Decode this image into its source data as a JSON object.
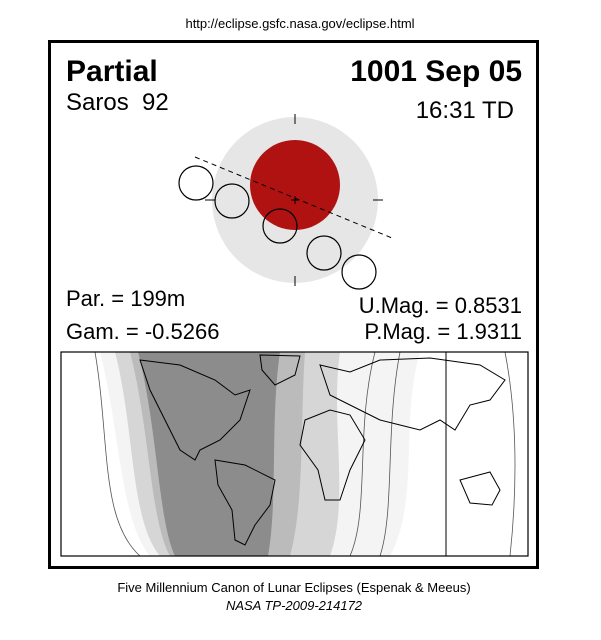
{
  "header": {
    "url": "http://eclipse.gsfc.nasa.gov/eclipse.html"
  },
  "eclipse": {
    "type": "Partial",
    "date": "1001 Sep 05",
    "saros": "Saros  92",
    "time": "16:31 TD"
  },
  "parameters": {
    "duration": "Par. = 199m",
    "umbral_magnitude": "U.Mag. = 0.8531",
    "gamma": "Gam. = -0.5266",
    "penumbral_magnitude": "P.Mag. = 1.9311"
  },
  "footer": {
    "source": "Five Millennium Canon of Lunar Eclipses (Espenak & Meeus)",
    "reference": "NASA TP-2009-214172"
  }
}
